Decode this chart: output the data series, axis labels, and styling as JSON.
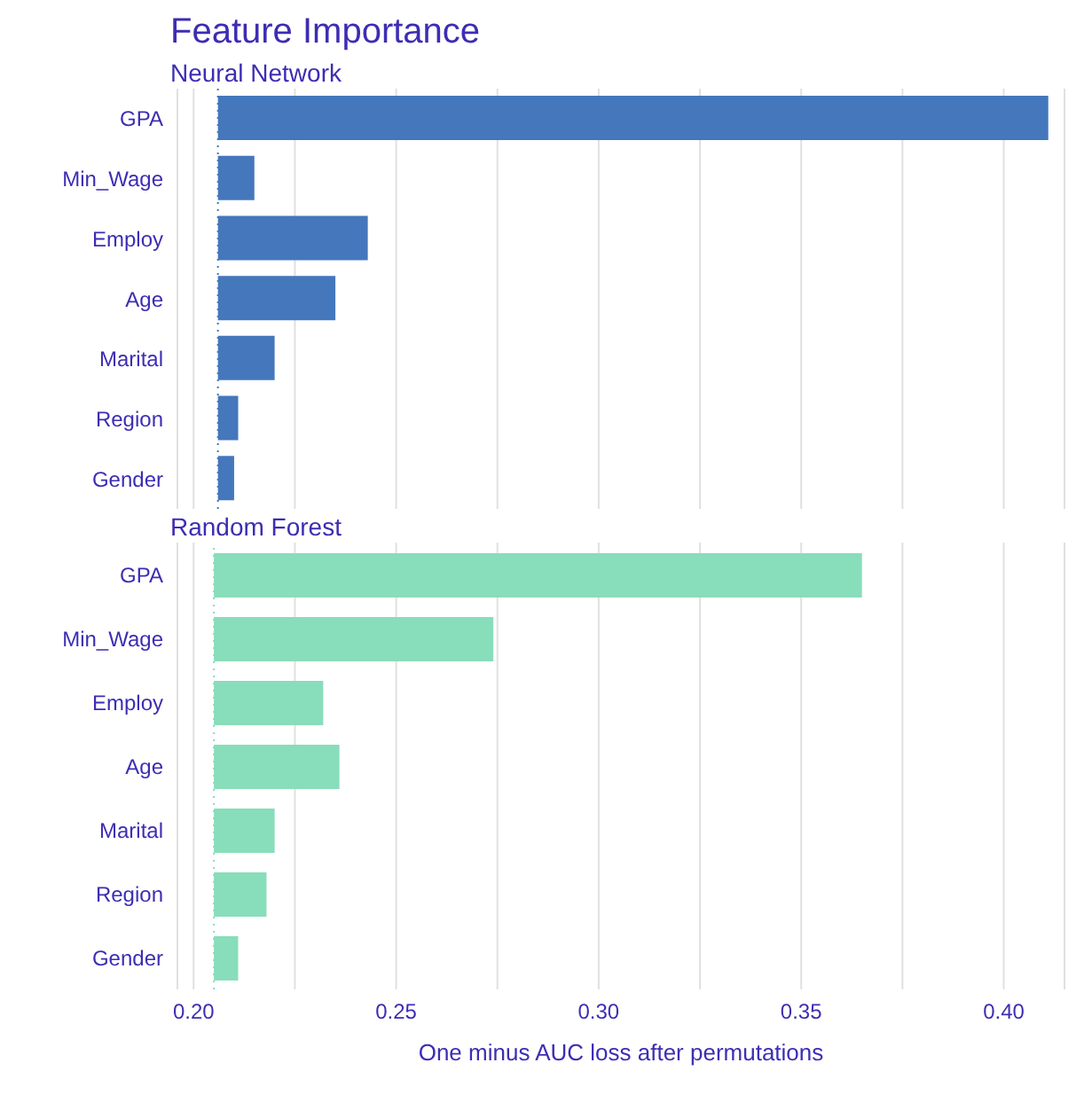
{
  "chart_data": [
    {
      "type": "bar",
      "title": "Feature Importance",
      "subtitle": "Neural Network",
      "orientation": "horizontal",
      "categories": [
        "GPA",
        "Min_Wage",
        "Employ",
        "Age",
        "Marital",
        "Region",
        "Gender"
      ],
      "values": [
        0.205,
        0.009,
        0.037,
        0.029,
        0.014,
        0.005,
        0.004
      ],
      "base": [
        0.206,
        0.206,
        0.206,
        0.206,
        0.206,
        0.206,
        0.206
      ],
      "color": "#4477bb",
      "xlim": [
        0.196,
        0.415
      ],
      "xticks": [
        0.2,
        0.225,
        0.25,
        0.275,
        0.3,
        0.325,
        0.35,
        0.375,
        0.4
      ],
      "grid": "x",
      "tick_labels": "y",
      "ref_lines": [
        {
          "axis": "x",
          "value": 0.206,
          "line_style": "dotted",
          "color": "#4477bb"
        }
      ]
    },
    {
      "type": "bar",
      "subtitle": "Random Forest",
      "xlabel": "One minus AUC loss after permutations",
      "orientation": "horizontal",
      "categories": [
        "GPA",
        "Min_Wage",
        "Employ",
        "Age",
        "Marital",
        "Region",
        "Gender"
      ],
      "values": [
        0.16,
        0.069,
        0.027,
        0.031,
        0.015,
        0.013,
        0.006
      ],
      "base": [
        0.205,
        0.205,
        0.205,
        0.205,
        0.205,
        0.205,
        0.205
      ],
      "color": "#88ddbb",
      "xlim": [
        0.196,
        0.415
      ],
      "xticks": [
        {
          "value": 0.2,
          "label": "0.20"
        },
        {
          "value": 0.225,
          "label": null
        },
        0.25,
        {
          "value": 0.275,
          "label": null
        },
        {
          "value": 0.3,
          "label": "0.30"
        },
        {
          "value": 0.325,
          "label": null
        },
        0.35,
        {
          "value": 0.375,
          "label": null
        },
        {
          "value": 0.4,
          "label": "0.40"
        }
      ],
      "grid": "x",
      "ref_lines": [
        {
          "axis": "x",
          "value": 0.205,
          "line_style": "dotted",
          "color": "#88ddbb"
        }
      ]
    }
  ]
}
